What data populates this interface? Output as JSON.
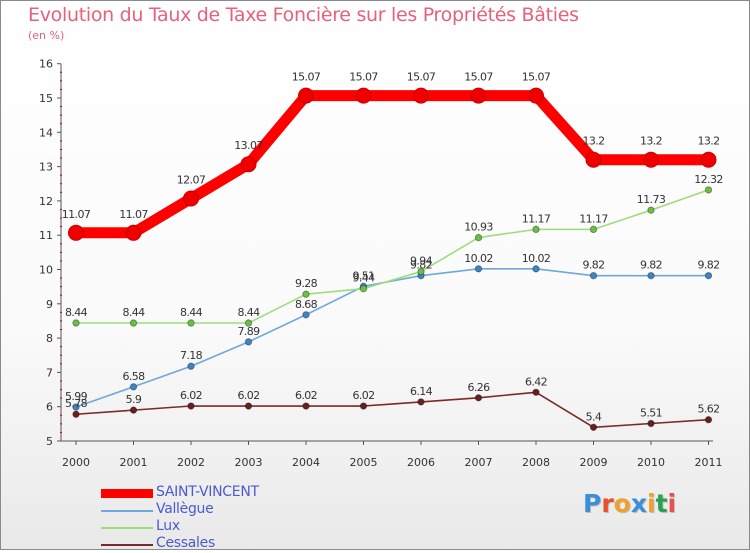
{
  "title": "Evolution du Taux de Taxe Foncière sur les Propriétés Bâties",
  "subtitle": "(en %)",
  "logo": {
    "text": "Proxiti",
    "letter_colors": [
      "#3a8fd8",
      "#e8502a",
      "#f0a030",
      "#3a8fd8",
      "#f0a030",
      "#2aa050",
      "#e85050"
    ]
  },
  "chart_data": {
    "type": "line",
    "title": "Evolution du Taux de Taxe Foncière sur les Propriétés Bâties",
    "ylabel": "(en %)",
    "xlabel": "",
    "categories": [
      "2000",
      "2001",
      "2002",
      "2003",
      "2004",
      "2005",
      "2006",
      "2007",
      "2008",
      "2009",
      "2010",
      "2011"
    ],
    "ylim": [
      5,
      16
    ],
    "yticks": [
      "5",
      "6",
      "7",
      "8",
      "9",
      "10",
      "11",
      "12",
      "13",
      "14",
      "15",
      "16"
    ],
    "grid": false,
    "legend_position": "bottom-left",
    "series": [
      {
        "name": "SAINT-VINCENT",
        "color": "#ff0000",
        "marker_color": "#ee0000",
        "values": [
          11.07,
          11.07,
          12.07,
          13.07,
          15.07,
          15.07,
          15.07,
          15.07,
          15.07,
          13.2,
          13.2,
          13.2
        ],
        "labels": [
          "11.07",
          "11.07",
          "12.07",
          "13.07",
          "15.07",
          "15.07",
          "15.07",
          "15.07",
          "15.07",
          "13.2",
          "13.2",
          "13.2"
        ]
      },
      {
        "name": "Vallègue",
        "color": "#6fa8dc",
        "marker_color": "#3d85c6",
        "values": [
          5.99,
          6.58,
          7.18,
          7.89,
          8.68,
          9.51,
          9.82,
          10.02,
          10.02,
          9.82,
          9.82,
          9.82
        ],
        "labels": [
          "5.99",
          "6.58",
          "7.18",
          "7.89",
          "8.68",
          "9.51",
          "9.82",
          "10.02",
          "10.02",
          "9.82",
          "9.82",
          "9.82"
        ]
      },
      {
        "name": "Lux",
        "color": "#9fdc7a",
        "marker_color": "#6ac043",
        "values": [
          8.44,
          8.44,
          8.44,
          8.44,
          9.28,
          9.44,
          9.94,
          10.93,
          11.17,
          11.17,
          11.73,
          12.32
        ],
        "labels": [
          "8.44",
          "8.44",
          "8.44",
          "8.44",
          "9.28",
          "9.44",
          "9.94",
          "10.93",
          "11.17",
          "11.17",
          "11.73",
          "12.32"
        ]
      },
      {
        "name": "Cessales",
        "color": "#7a2a2a",
        "marker_color": "#6a1f1f",
        "values": [
          5.78,
          5.9,
          6.02,
          6.02,
          6.02,
          6.02,
          6.14,
          6.26,
          6.42,
          5.4,
          5.51,
          5.62
        ],
        "labels": [
          "5.78",
          "5.9",
          "6.02",
          "6.02",
          "6.02",
          "6.02",
          "6.14",
          "6.26",
          "6.42",
          "5.4",
          "5.51",
          "5.62"
        ]
      }
    ]
  }
}
